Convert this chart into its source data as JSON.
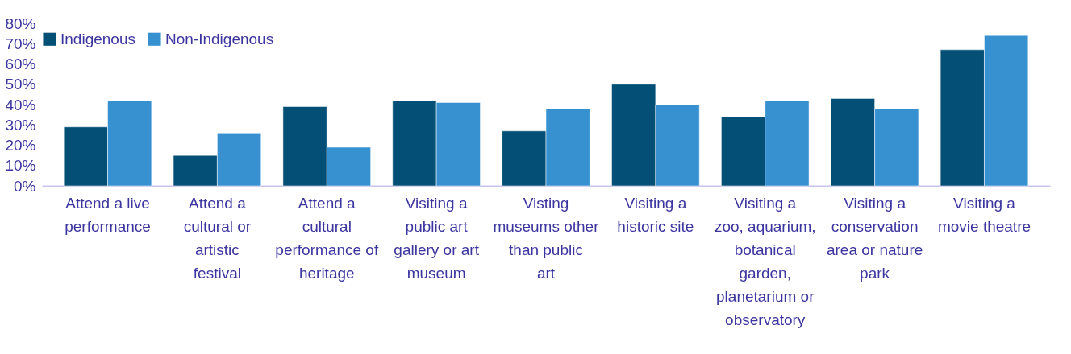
{
  "chart_data": {
    "type": "bar",
    "categories": [
      "Attend a live performance",
      "Attend a cultural or artistic festival",
      "Attend a cultural performance of heritage",
      "Visiting a public art gallery or art museum",
      "Visting museums other than public art",
      "Visiting a historic site",
      "Visiting a zoo, aquarium, botanical garden, planetarium or observatory",
      "Visiting a conservation area or nature park",
      "Visiting a movie theatre"
    ],
    "series": [
      {
        "name": "Indigenous",
        "color": "#044f75",
        "values": [
          29,
          15,
          39,
          42,
          27,
          50,
          34,
          43,
          67
        ]
      },
      {
        "name": "Non-Indigenous",
        "color": "#3791d0",
        "values": [
          42,
          26,
          19,
          41,
          38,
          40,
          42,
          38,
          74
        ]
      }
    ],
    "ylim": [
      0,
      80
    ],
    "yticks": [
      {
        "value": 0,
        "label": "0%"
      },
      {
        "value": 10,
        "label": "10%"
      },
      {
        "value": 20,
        "label": "20%"
      },
      {
        "value": 30,
        "label": "30%"
      },
      {
        "value": 40,
        "label": "40%"
      },
      {
        "value": 50,
        "label": "50%"
      },
      {
        "value": 60,
        "label": "60%"
      },
      {
        "value": 70,
        "label": "70%"
      },
      {
        "value": 80,
        "label": "80%"
      }
    ],
    "grid": false,
    "legend": "top"
  }
}
